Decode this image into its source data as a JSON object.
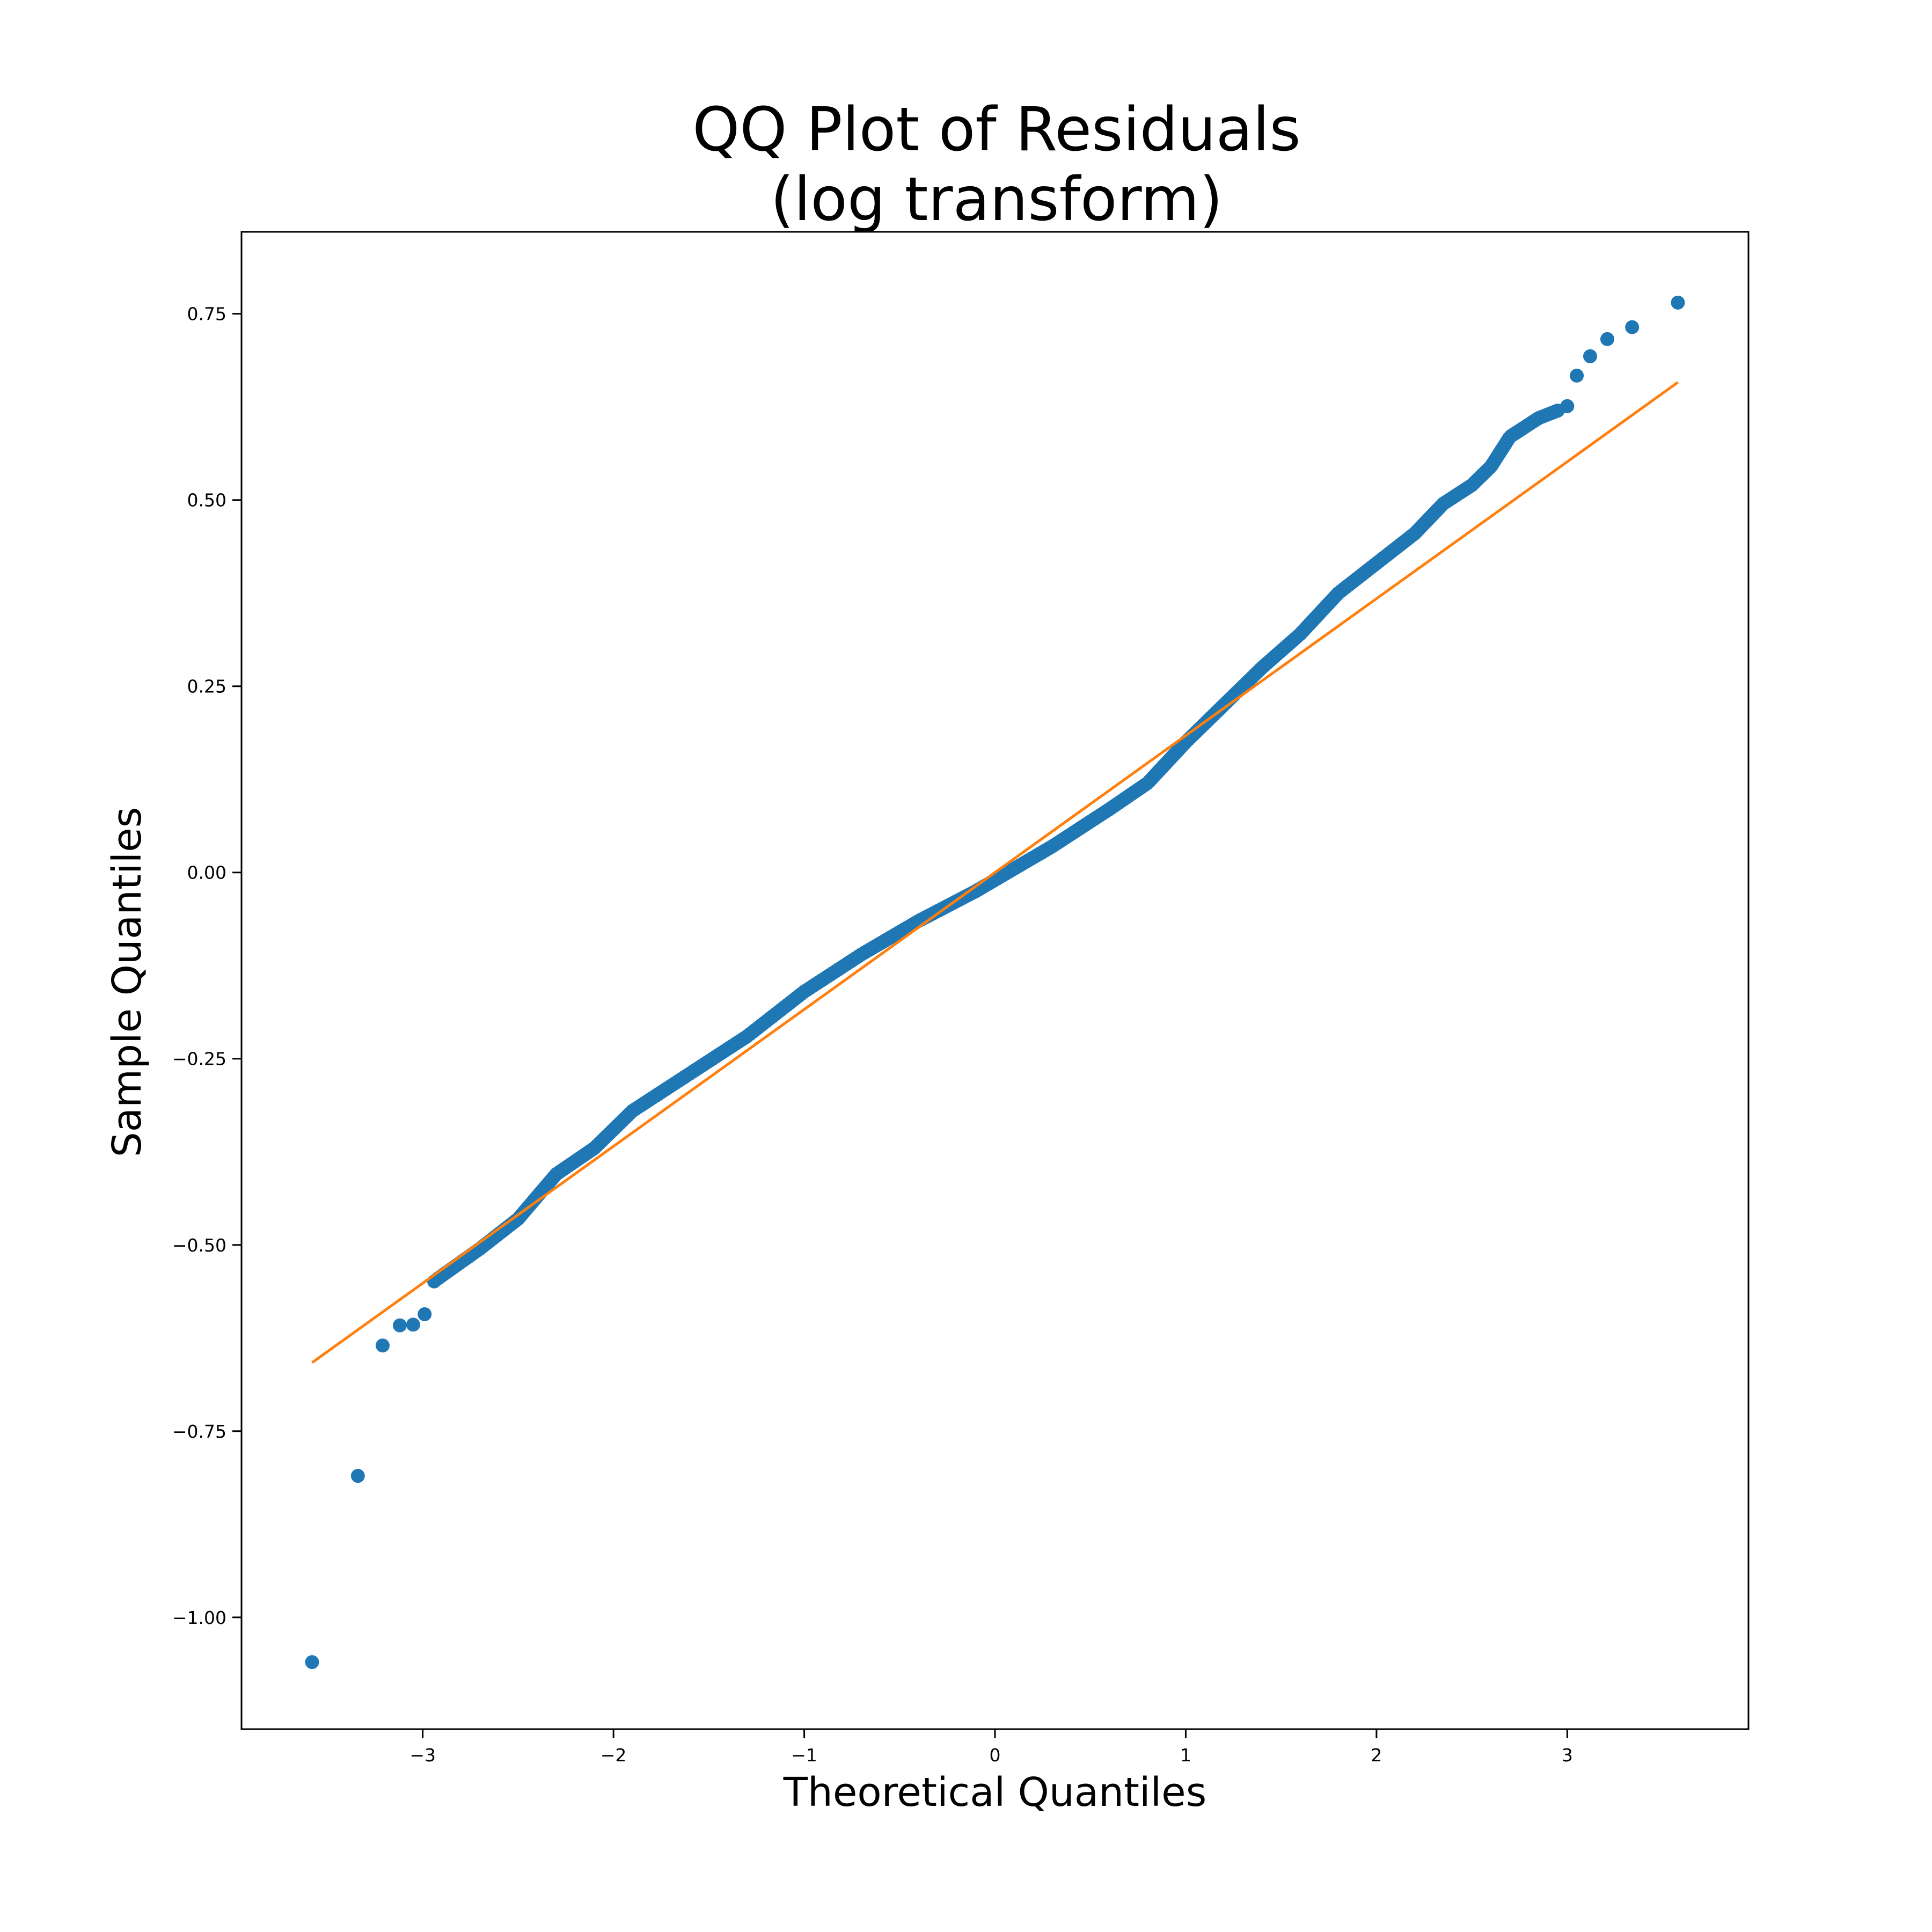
{
  "chart_data": {
    "type": "scatter",
    "title_lines": [
      "QQ Plot of Residuals",
      "(log transform)"
    ],
    "xlabel": "Theoretical Quantiles",
    "ylabel": "Sample Quantiles",
    "xlim": [
      -3.95,
      3.95
    ],
    "ylim": [
      -1.15,
      0.86
    ],
    "x_ticks": [
      -3,
      -2,
      -1,
      0,
      1,
      2,
      3
    ],
    "x_tick_labels": [
      "−3",
      "−2",
      "−1",
      "0",
      "1",
      "2",
      "3"
    ],
    "y_ticks": [
      -1.0,
      -0.75,
      -0.5,
      -0.25,
      0.0,
      0.25,
      0.5,
      0.75
    ],
    "y_tick_labels": [
      "−1.00",
      "−0.75",
      "−0.50",
      "−0.25",
      "0.00",
      "0.25",
      "0.50",
      "0.75"
    ],
    "grid": false,
    "legend": "none",
    "colors": {
      "points": "#1f77b4",
      "reference_line": "#ff7f0e"
    },
    "reference_line": {
      "x": [
        -3.58,
        3.58
      ],
      "y": [
        -0.658,
        0.658
      ]
    },
    "curve_knots": [
      [
        -2.92,
        -0.545
      ],
      [
        -2.7,
        -0.505
      ],
      [
        -2.5,
        -0.465
      ],
      [
        -2.3,
        -0.405
      ],
      [
        -2.1,
        -0.37
      ],
      [
        -1.9,
        -0.32
      ],
      [
        -1.6,
        -0.27
      ],
      [
        -1.3,
        -0.22
      ],
      [
        -1.0,
        -0.16
      ],
      [
        -0.7,
        -0.11
      ],
      [
        -0.4,
        -0.065
      ],
      [
        -0.1,
        -0.025
      ],
      [
        0.0,
        -0.01
      ],
      [
        0.3,
        0.035
      ],
      [
        0.6,
        0.085
      ],
      [
        0.8,
        0.12
      ],
      [
        1.0,
        0.175
      ],
      [
        1.2,
        0.225
      ],
      [
        1.4,
        0.275
      ],
      [
        1.6,
        0.32
      ],
      [
        1.8,
        0.375
      ],
      [
        2.0,
        0.415
      ],
      [
        2.2,
        0.455
      ],
      [
        2.35,
        0.495
      ],
      [
        2.5,
        0.52
      ],
      [
        2.6,
        0.545
      ],
      [
        2.7,
        0.585
      ],
      [
        2.85,
        0.61
      ],
      [
        2.95,
        0.62
      ]
    ],
    "tail_points": [
      {
        "x": -3.58,
        "y": -1.06
      },
      {
        "x": -3.34,
        "y": -0.81
      },
      {
        "x": -3.21,
        "y": -0.635
      },
      {
        "x": -3.12,
        "y": -0.608
      },
      {
        "x": -3.05,
        "y": -0.607
      },
      {
        "x": -2.99,
        "y": -0.593
      },
      {
        "x": -2.94,
        "y": -0.549
      },
      {
        "x": 3.0,
        "y": 0.626
      },
      {
        "x": 3.05,
        "y": 0.667
      },
      {
        "x": 3.12,
        "y": 0.693
      },
      {
        "x": 3.21,
        "y": 0.716
      },
      {
        "x": 3.34,
        "y": 0.732
      },
      {
        "x": 3.58,
        "y": 0.765
      }
    ]
  }
}
